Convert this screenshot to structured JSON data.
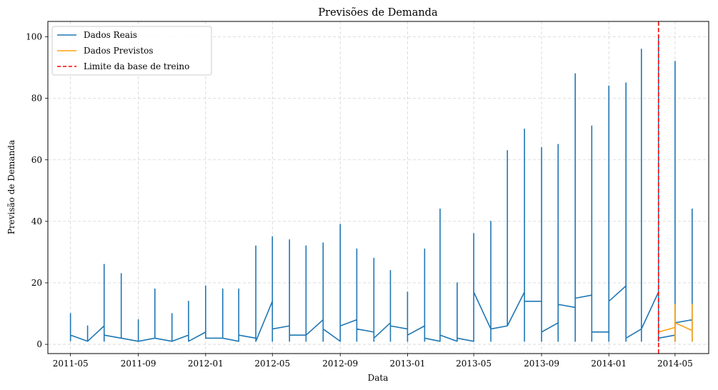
{
  "chart_data": {
    "type": "line",
    "title": "Previsões de Demanda",
    "xlabel": "Data",
    "ylabel": "Previsão de Demanda",
    "xlim": [
      "2011-03-21",
      "2014-07-01"
    ],
    "ylim": [
      -3,
      105
    ],
    "grid": true,
    "legend_position": "top-left",
    "x_ticks": [
      "2011-05",
      "2011-09",
      "2012-01",
      "2012-05",
      "2012-09",
      "2013-01",
      "2013-05",
      "2013-09",
      "2014-01",
      "2014-05"
    ],
    "y_ticks": [
      0,
      20,
      40,
      60,
      80,
      100
    ],
    "series": [
      {
        "name": "Dados Reais",
        "color": "#1f77b4",
        "style": "solid",
        "points": [
          [
            "2011-05-01",
            1
          ],
          [
            "2011-05-01",
            10
          ],
          [
            "2011-05-01",
            3
          ],
          [
            "2011-06-01",
            1
          ],
          [
            "2011-06-01",
            6
          ],
          [
            "2011-06-01",
            1
          ],
          [
            "2011-07-01",
            6
          ],
          [
            "2011-07-01",
            26
          ],
          [
            "2011-07-01",
            1
          ],
          [
            "2011-07-01",
            3
          ],
          [
            "2011-08-01",
            2
          ],
          [
            "2011-08-01",
            23
          ],
          [
            "2011-08-01",
            2
          ],
          [
            "2011-09-01",
            1
          ],
          [
            "2011-09-01",
            8
          ],
          [
            "2011-09-01",
            1
          ],
          [
            "2011-10-01",
            2
          ],
          [
            "2011-10-01",
            18
          ],
          [
            "2011-10-01",
            2
          ],
          [
            "2011-11-01",
            1
          ],
          [
            "2011-11-01",
            10
          ],
          [
            "2011-11-01",
            1
          ],
          [
            "2011-12-01",
            3
          ],
          [
            "2011-12-01",
            14
          ],
          [
            "2011-12-01",
            1
          ],
          [
            "2012-01-01",
            4
          ],
          [
            "2012-01-01",
            19
          ],
          [
            "2012-01-01",
            2
          ],
          [
            "2012-02-01",
            2
          ],
          [
            "2012-02-01",
            18
          ],
          [
            "2012-02-01",
            2
          ],
          [
            "2012-03-01",
            1
          ],
          [
            "2012-03-01",
            18
          ],
          [
            "2012-03-01",
            3
          ],
          [
            "2012-04-01",
            2
          ],
          [
            "2012-04-01",
            32
          ],
          [
            "2012-04-01",
            1
          ],
          [
            "2012-05-01",
            14
          ],
          [
            "2012-05-01",
            35
          ],
          [
            "2012-05-01",
            1
          ],
          [
            "2012-05-01",
            5
          ],
          [
            "2012-06-01",
            6
          ],
          [
            "2012-06-01",
            34
          ],
          [
            "2012-06-01",
            1
          ],
          [
            "2012-06-01",
            3
          ],
          [
            "2012-07-01",
            3
          ],
          [
            "2012-07-01",
            32
          ],
          [
            "2012-07-01",
            1
          ],
          [
            "2012-07-01",
            3
          ],
          [
            "2012-08-01",
            8
          ],
          [
            "2012-08-01",
            33
          ],
          [
            "2012-08-01",
            1
          ],
          [
            "2012-08-01",
            5
          ],
          [
            "2012-09-01",
            1
          ],
          [
            "2012-09-01",
            39
          ],
          [
            "2012-09-01",
            6
          ],
          [
            "2012-10-01",
            8
          ],
          [
            "2012-10-01",
            31
          ],
          [
            "2012-10-01",
            1
          ],
          [
            "2012-10-01",
            5
          ],
          [
            "2012-11-01",
            4
          ],
          [
            "2012-11-01",
            28
          ],
          [
            "2012-11-01",
            1
          ],
          [
            "2012-11-01",
            2
          ],
          [
            "2012-12-01",
            7
          ],
          [
            "2012-12-01",
            24
          ],
          [
            "2012-12-01",
            1
          ],
          [
            "2012-12-01",
            6
          ],
          [
            "2013-01-01",
            5
          ],
          [
            "2013-01-01",
            17
          ],
          [
            "2013-01-01",
            1
          ],
          [
            "2013-01-01",
            3
          ],
          [
            "2013-02-01",
            6
          ],
          [
            "2013-02-01",
            31
          ],
          [
            "2013-02-01",
            1
          ],
          [
            "2013-02-01",
            2
          ],
          [
            "2013-03-01",
            1
          ],
          [
            "2013-03-01",
            44
          ],
          [
            "2013-03-01",
            1
          ],
          [
            "2013-03-01",
            3
          ],
          [
            "2013-04-01",
            1
          ],
          [
            "2013-04-01",
            20
          ],
          [
            "2013-04-01",
            1
          ],
          [
            "2013-04-01",
            2
          ],
          [
            "2013-05-01",
            1
          ],
          [
            "2013-05-01",
            36
          ],
          [
            "2013-05-01",
            1
          ],
          [
            "2013-05-01",
            17
          ],
          [
            "2013-06-01",
            5
          ],
          [
            "2013-06-01",
            40
          ],
          [
            "2013-06-01",
            1
          ],
          [
            "2013-06-01",
            5
          ],
          [
            "2013-07-01",
            6
          ],
          [
            "2013-07-01",
            63
          ],
          [
            "2013-07-01",
            6
          ],
          [
            "2013-08-01",
            17
          ],
          [
            "2013-08-01",
            70
          ],
          [
            "2013-08-01",
            1
          ],
          [
            "2013-08-01",
            14
          ],
          [
            "2013-09-01",
            14
          ],
          [
            "2013-09-01",
            64
          ],
          [
            "2013-09-01",
            1
          ],
          [
            "2013-09-01",
            4
          ],
          [
            "2013-10-01",
            7
          ],
          [
            "2013-10-01",
            65
          ],
          [
            "2013-10-01",
            1
          ],
          [
            "2013-10-01",
            13
          ],
          [
            "2013-11-01",
            12
          ],
          [
            "2013-11-01",
            88
          ],
          [
            "2013-11-01",
            1
          ],
          [
            "2013-11-01",
            15
          ],
          [
            "2013-12-01",
            16
          ],
          [
            "2013-12-01",
            71
          ],
          [
            "2013-12-01",
            1
          ],
          [
            "2013-12-01",
            4
          ],
          [
            "2014-01-01",
            4
          ],
          [
            "2014-01-01",
            84
          ],
          [
            "2014-01-01",
            1
          ],
          [
            "2014-01-01",
            14
          ],
          [
            "2014-02-01",
            19
          ],
          [
            "2014-02-01",
            85
          ],
          [
            "2014-02-01",
            1
          ],
          [
            "2014-02-01",
            2
          ],
          [
            "2014-03-01",
            5
          ],
          [
            "2014-03-01",
            96
          ],
          [
            "2014-03-01",
            1
          ],
          [
            "2014-03-01",
            5
          ],
          [
            "2014-04-01",
            17
          ],
          [
            "2014-04-01",
            100
          ],
          [
            "2014-04-01",
            1
          ],
          [
            "2014-04-01",
            2
          ],
          [
            "2014-05-01",
            3
          ],
          [
            "2014-05-01",
            92
          ],
          [
            "2014-05-01",
            1
          ],
          [
            "2014-05-01",
            7
          ],
          [
            "2014-06-01",
            8
          ],
          [
            "2014-06-01",
            44
          ],
          [
            "2014-06-01",
            1
          ],
          [
            "2014-06-01",
            8
          ]
        ]
      },
      {
        "name": "Dados Previstos",
        "color": "#ff9f0e",
        "style": "solid",
        "points": [
          [
            "2014-04-01",
            4
          ],
          [
            "2014-05-01",
            5.5
          ],
          [
            "2014-05-01",
            13
          ],
          [
            "2014-05-01",
            1
          ],
          [
            "2014-05-01",
            7
          ],
          [
            "2014-06-01",
            4.5
          ],
          [
            "2014-06-01",
            13
          ],
          [
            "2014-06-01",
            1
          ],
          [
            "2014-06-01",
            5
          ]
        ]
      }
    ],
    "vlines": [
      {
        "name": "Limite da base de treino",
        "x": "2014-04-01",
        "color": "#ff0000",
        "style": "dashed"
      }
    ]
  }
}
